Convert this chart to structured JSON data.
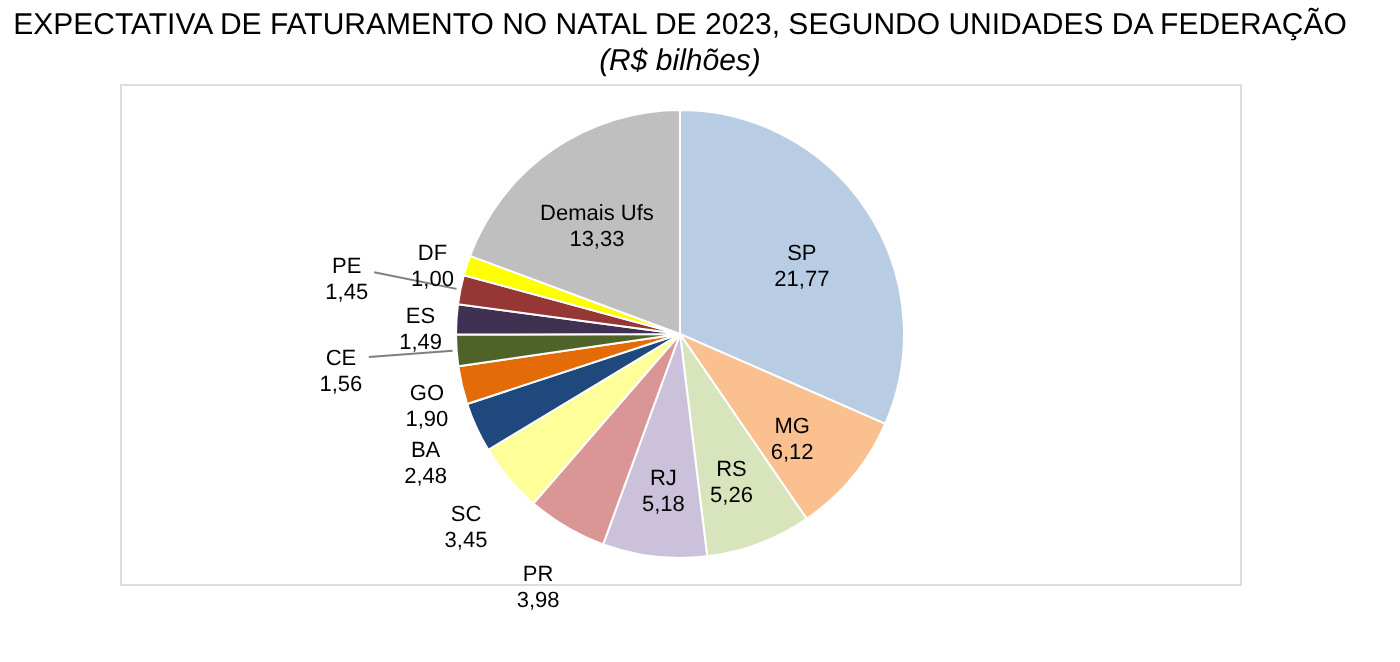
{
  "chart_data": {
    "type": "pie",
    "title": "EXPECTATIVA DE FATURAMENTO NO NATAL DE 2023, SEGUNDO UNIDADES DA FEDERAÇÃO",
    "subtitle": "(R$ bilhões)",
    "categories": [
      "SP",
      "MG",
      "RS",
      "RJ",
      "PR",
      "SC",
      "BA",
      "GO",
      "CE",
      "ES",
      "PE",
      "DF",
      "Demais Ufs"
    ],
    "values": [
      21.77,
      6.12,
      5.26,
      5.18,
      3.98,
      3.45,
      2.48,
      1.9,
      1.56,
      1.49,
      1.45,
      1.0,
      13.33
    ],
    "value_labels": [
      "21,77",
      "6,12",
      "5,26",
      "5,18",
      "3,98",
      "3,45",
      "2,48",
      "1,90",
      "1,56",
      "1,49",
      "1,45",
      "1,00",
      "13,33"
    ],
    "colors": [
      "#b8cce4",
      "#fac090",
      "#d7e4bc",
      "#ccc1da",
      "#d99694",
      "#ffff99",
      "#1f497d",
      "#e36c09",
      "#4f6228",
      "#403152",
      "#953735",
      "#ffff00",
      "#bfbfbf"
    ],
    "legend": false
  }
}
